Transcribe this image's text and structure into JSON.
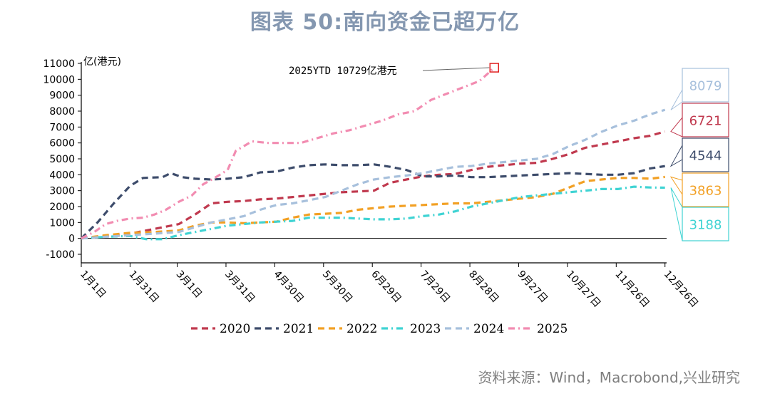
{
  "title": "图表 50:南向资金已超万亿",
  "source": "资料来源：Wind，Macrobond,兴业研究",
  "chart_data": {
    "type": "line",
    "title": "图表 50:南向资金已超万亿",
    "ylabel": "亿(港元)",
    "ylim": [
      -1000,
      11000
    ],
    "yticks": [
      11000,
      10000,
      9000,
      8000,
      7000,
      6000,
      5000,
      4000,
      3000,
      2000,
      1000,
      0,
      -1000
    ],
    "xlim": [
      0,
      360
    ],
    "xtick_labels": [
      "1月1日",
      "1月31日",
      "3月1日",
      "3月31日",
      "4月30日",
      "5月30日",
      "6月29日",
      "7月29日",
      "8月28日",
      "9月27日",
      "10月27日",
      "11月26日",
      "12月26日"
    ],
    "xtick_days": [
      0,
      30,
      59,
      89,
      119,
      149,
      179,
      209,
      239,
      269,
      299,
      329,
      359
    ],
    "legend_position": "bottom",
    "annotation": {
      "text": "2025YTD 10729亿港元",
      "day": 254,
      "value": 10729
    },
    "end_labels": [
      {
        "text": "8079",
        "color": "#a7c0dc"
      },
      {
        "text": "6721",
        "color": "#c0394e"
      },
      {
        "text": "4544",
        "color": "#3d4c6b"
      },
      {
        "text": "3863",
        "color": "#f2a024"
      },
      {
        "text": "3188",
        "color": "#3fd3d3"
      }
    ],
    "series": [
      {
        "name": "2020",
        "color": "#c0394e",
        "dash": "9,6",
        "x": [
          0,
          15,
          30,
          45,
          60,
          70,
          80,
          90,
          100,
          110,
          120,
          130,
          140,
          150,
          160,
          170,
          180,
          190,
          200,
          210,
          220,
          230,
          240,
          250,
          260,
          270,
          280,
          290,
          300,
          310,
          320,
          330,
          340,
          350,
          359
        ],
        "y": [
          0,
          150,
          300,
          600,
          900,
          1500,
          2200,
          2300,
          2350,
          2450,
          2500,
          2600,
          2700,
          2800,
          2900,
          2950,
          3000,
          3500,
          3700,
          3900,
          4000,
          4050,
          4300,
          4500,
          4600,
          4700,
          4750,
          5000,
          5300,
          5700,
          5900,
          6100,
          6300,
          6450,
          6721
        ]
      },
      {
        "name": "2021",
        "color": "#3d4c6b",
        "dash": "9,6",
        "x": [
          0,
          10,
          20,
          30,
          38,
          50,
          55,
          62,
          70,
          80,
          90,
          100,
          110,
          120,
          130,
          140,
          150,
          160,
          170,
          180,
          190,
          200,
          210,
          220,
          230,
          240,
          250,
          260,
          270,
          280,
          290,
          300,
          310,
          320,
          330,
          340,
          350,
          359
        ],
        "y": [
          0,
          1000,
          2200,
          3300,
          3800,
          3850,
          4100,
          3850,
          3750,
          3700,
          3750,
          3850,
          4150,
          4200,
          4450,
          4600,
          4650,
          4600,
          4600,
          4650,
          4500,
          4300,
          3900,
          3900,
          3950,
          3850,
          3850,
          3900,
          3950,
          4000,
          4050,
          4100,
          4050,
          4000,
          4000,
          4100,
          4400,
          4544
        ]
      },
      {
        "name": "2022",
        "color": "#f2a024",
        "dash": "9,6",
        "x": [
          0,
          15,
          30,
          45,
          60,
          70,
          80,
          90,
          100,
          110,
          120,
          130,
          140,
          150,
          160,
          170,
          180,
          190,
          200,
          210,
          220,
          230,
          240,
          250,
          260,
          270,
          280,
          290,
          300,
          310,
          320,
          330,
          340,
          350,
          359
        ],
        "y": [
          0,
          200,
          350,
          400,
          500,
          800,
          1000,
          1000,
          950,
          1000,
          1050,
          1300,
          1500,
          1550,
          1600,
          1800,
          1900,
          2000,
          2050,
          2100,
          2150,
          2200,
          2200,
          2300,
          2400,
          2500,
          2600,
          2800,
          3200,
          3600,
          3700,
          3800,
          3800,
          3750,
          3863
        ]
      },
      {
        "name": "2023",
        "color": "#3fd3d3",
        "dash": "9,5,2,5",
        "x": [
          0,
          15,
          30,
          40,
          50,
          60,
          70,
          80,
          90,
          100,
          110,
          120,
          130,
          140,
          150,
          160,
          170,
          180,
          190,
          200,
          210,
          220,
          230,
          240,
          250,
          260,
          270,
          280,
          290,
          300,
          310,
          320,
          330,
          340,
          350,
          359
        ],
        "y": [
          0,
          100,
          150,
          -50,
          -50,
          200,
          400,
          600,
          800,
          900,
          1000,
          1050,
          1100,
          1300,
          1300,
          1300,
          1250,
          1200,
          1200,
          1250,
          1400,
          1500,
          1700,
          2000,
          2200,
          2400,
          2600,
          2700,
          2800,
          2900,
          3000,
          3100,
          3100,
          3250,
          3200,
          3188
        ]
      },
      {
        "name": "2024",
        "color": "#a7c0dc",
        "dash": "9,6",
        "x": [
          0,
          15,
          30,
          45,
          60,
          70,
          80,
          90,
          100,
          110,
          120,
          130,
          140,
          150,
          160,
          170,
          180,
          190,
          200,
          210,
          220,
          230,
          240,
          250,
          260,
          270,
          280,
          290,
          300,
          310,
          320,
          330,
          340,
          350,
          359
        ],
        "y": [
          0,
          100,
          200,
          300,
          400,
          700,
          1000,
          1200,
          1400,
          1800,
          2100,
          2200,
          2400,
          2600,
          3000,
          3400,
          3700,
          3850,
          3950,
          4100,
          4300,
          4500,
          4550,
          4700,
          4800,
          4900,
          5000,
          5300,
          5800,
          6200,
          6700,
          7100,
          7400,
          7800,
          8079
        ]
      },
      {
        "name": "2025",
        "color": "#f28cb1",
        "dash": "9,5,2,5",
        "x": [
          0,
          8,
          15,
          22,
          30,
          38,
          45,
          52,
          60,
          68,
          75,
          82,
          90,
          95,
          105,
          115,
          125,
          135,
          145,
          155,
          165,
          175,
          185,
          195,
          205,
          215,
          225,
          235,
          245,
          254
        ],
        "y": [
          0,
          400,
          900,
          1100,
          1250,
          1300,
          1500,
          1800,
          2300,
          2700,
          3400,
          3800,
          4300,
          5500,
          6100,
          6000,
          6000,
          6000,
          6300,
          6600,
          6800,
          7100,
          7400,
          7800,
          8000,
          8700,
          9100,
          9500,
          9900,
          10729
        ]
      }
    ]
  }
}
